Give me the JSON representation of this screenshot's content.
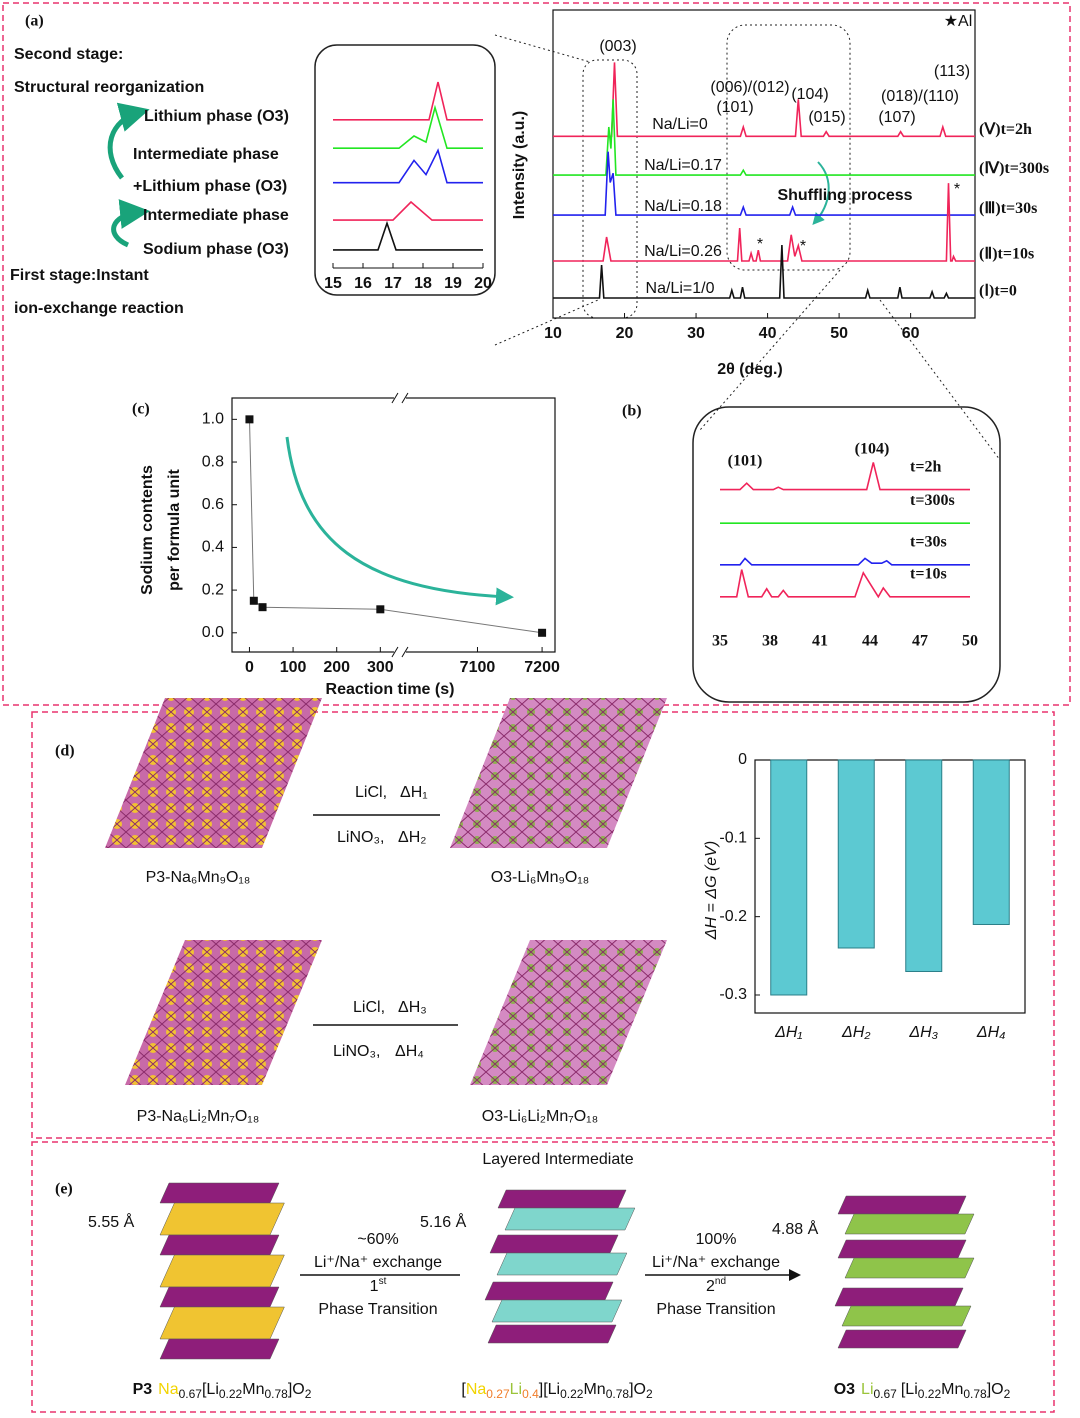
{
  "panels": {
    "a": "(a)",
    "b": "(b)",
    "c": "(c)",
    "d": "(d)",
    "e": "(e)"
  },
  "panel_a": {
    "texts": [
      "Second stage:",
      "Structural reorganization",
      "Lithium phase (O3)",
      "Intermediate phase",
      "+Lithium phase (O3)",
      "Intermediate phase",
      "Sodium phase (O3)",
      "First stage:Instant",
      "ion-exchange reaction"
    ]
  },
  "panel_d": {
    "reagents": [
      "LiCl,",
      "ΔH₁",
      "LiNO₃,",
      "ΔH₂",
      "LiCl,",
      "ΔH₃",
      "LiNO₃,",
      "ΔH₄"
    ],
    "compounds": [
      "P3-Na₆Mn₉O₁₈",
      "O3-Li₆Mn₉O₁₈",
      "P3-Na₆Li₂Mn₇O₁₈",
      "O3-Li₆Li₂Mn₇O₁₈"
    ]
  },
  "panel_e": {
    "title": "Layered Intermediate",
    "spacings": [
      "5.55 Å",
      "5.16 Å",
      "4.88 Å"
    ],
    "steps": [
      {
        "percent": "~60%",
        "exchange": "Li⁺/Na⁺ exchange",
        "order": [
          "1",
          "st"
        ],
        "label": "Phase Transition"
      },
      {
        "percent": "100%",
        "exchange": "Li⁺/Na⁺ exchange",
        "order": [
          "2",
          "nd"
        ],
        "label": "Phase Transition"
      }
    ],
    "formulas": [
      [
        "P3",
        "Na",
        "0.67",
        "[Li",
        "0.22",
        "Mn",
        "0.78",
        "]O",
        "2"
      ],
      [
        "[",
        "Na",
        "0.27",
        "Li",
        "0.4",
        "][Li",
        "0.22",
        "Mn",
        "0.78",
        "]O",
        "2"
      ],
      [
        "O3",
        "Li",
        "0.67",
        "[Li",
        "0.22",
        "Mn",
        "0.78",
        "]O",
        "2"
      ]
    ]
  },
  "chart_data": [
    {
      "type": "line",
      "xlabel": "2θ (deg.)",
      "ylabel": "Intensity (a.u.)",
      "xlim": [
        10,
        69
      ],
      "xticks": [
        10,
        20,
        30,
        40,
        50,
        60
      ],
      "ylim": [
        0,
        100
      ],
      "annotations": [
        "(003)",
        "(006)/(012)",
        "(101)",
        "(104)",
        "(015)",
        "(018)/(110)",
        "(107)",
        "(113)",
        "★Al",
        "Na/Li=0",
        "Na/Li=0.17",
        "Na/Li=0.18",
        "Na/Li=0.26",
        "Na/Li=1/0",
        "Shuffling process",
        "*",
        "*",
        "*"
      ],
      "series": [
        {
          "name": "(Ⅴ)t=2h",
          "color": "#f0245a",
          "x": [
            10,
            18.2,
            18.6,
            19.0,
            36.2,
            36.6,
            37.0,
            43.9,
            44.3,
            44.7,
            47.8,
            48.2,
            48.6,
            58.2,
            58.6,
            59.0,
            64.1,
            64.5,
            64.9,
            69
          ],
          "values": [
            59,
            59,
            83,
            59,
            59,
            62,
            59,
            59,
            71,
            59,
            59,
            60.5,
            59,
            59,
            60.5,
            59,
            59,
            62,
            59,
            59
          ]
        },
        {
          "name": "(Ⅳ)t=300s",
          "color": "#22e622",
          "x": [
            10,
            17.4,
            17.8,
            18.1,
            18.4,
            18.8,
            36.2,
            36.6,
            37,
            69
          ],
          "values": [
            46.4,
            46.4,
            62,
            55,
            71,
            46.4,
            46.4,
            48,
            46.4,
            46.4
          ]
        },
        {
          "name": "(Ⅲ)t=30s",
          "color": "#2222ee",
          "x": [
            10,
            17.3,
            17.7,
            18.0,
            18.4,
            18.8,
            36.2,
            36.6,
            37.0,
            43.1,
            43.5,
            43.9,
            69
          ],
          "values": [
            33.4,
            33.4,
            54,
            44,
            47,
            33.4,
            33.4,
            36,
            33.4,
            33.4,
            36,
            33.4,
            33.4
          ]
        },
        {
          "name": "(Ⅱ)t=10s",
          "color": "#f0245a",
          "x": [
            10,
            17.0,
            17.5,
            18.1,
            35.8,
            36.1,
            36.4,
            37.4,
            37.7,
            38.0,
            38.4,
            38.7,
            39.0,
            42.8,
            43.3,
            43.8,
            44.3,
            44.8,
            65.0,
            65.3,
            65.6,
            65.8,
            66.0,
            66.3,
            69
          ],
          "values": [
            18.5,
            18.5,
            26.3,
            18.5,
            18.5,
            29.2,
            18.5,
            18.5,
            21,
            18.5,
            18.5,
            22,
            18.5,
            18.5,
            27,
            20,
            23.5,
            18.5,
            18.5,
            43.8,
            18.5,
            18.5,
            20,
            18.5,
            18.5
          ]
        },
        {
          "name": "(Ⅰ)t=0",
          "color": "#111111",
          "x": [
            10,
            16.5,
            16.8,
            17.1,
            34.7,
            35,
            35.3,
            36.2,
            36.5,
            36.8,
            41.7,
            42,
            42.3,
            53.7,
            54,
            54.3,
            58.2,
            58.5,
            58.8,
            62.7,
            63,
            63.3,
            64.7,
            65,
            65.3,
            69
          ],
          "values": [
            6.5,
            6.5,
            17.2,
            6.5,
            6.5,
            9,
            6.5,
            6.5,
            10,
            6.5,
            6.5,
            23.7,
            6.5,
            6.5,
            9,
            6.5,
            6.5,
            10,
            6.5,
            6.5,
            8.5,
            6.5,
            6.5,
            8,
            6.5,
            6.5
          ]
        }
      ]
    },
    {
      "type": "line",
      "xlim": [
        15,
        20
      ],
      "xticks": [
        15,
        16,
        17,
        18,
        19,
        20
      ],
      "ylim": [
        0,
        100
      ],
      "series": [
        {
          "color": "#f0245a",
          "x": [
            15,
            18.2,
            18.5,
            18.8,
            20
          ],
          "values": [
            73,
            73,
            91.6,
            73,
            73
          ]
        },
        {
          "color": "#22e622",
          "x": [
            15,
            17.2,
            17.7,
            18.1,
            18.4,
            18.8,
            20
          ],
          "values": [
            59,
            59,
            65,
            62,
            79,
            59,
            59
          ]
        },
        {
          "color": "#2222ee",
          "x": [
            15,
            17.2,
            17.7,
            18.1,
            18.5,
            18.8,
            20
          ],
          "values": [
            42,
            42,
            53,
            46,
            58,
            42,
            42
          ]
        },
        {
          "color": "#f0245a",
          "x": [
            15,
            17.0,
            17.6,
            18.3,
            20
          ],
          "values": [
            23.6,
            23.6,
            32.5,
            23.6,
            23.6
          ]
        },
        {
          "color": "#111111",
          "x": [
            15,
            16.5,
            16.8,
            17.1,
            20
          ],
          "values": [
            8.9,
            8.9,
            22,
            8.9,
            8.9
          ]
        }
      ]
    },
    {
      "type": "line",
      "xlim": [
        35,
        50
      ],
      "xticks": [
        35,
        38,
        41,
        44,
        47,
        50
      ],
      "ylim": [
        0,
        100
      ],
      "annotations": [
        "(101)",
        "(104)"
      ],
      "series": [
        {
          "name": "t=2h",
          "color": "#f0245a",
          "x": [
            35,
            36.2,
            36.6,
            37,
            38.2,
            38.5,
            38.8,
            43.8,
            44.2,
            44.6,
            50
          ],
          "values": [
            69,
            69,
            73,
            69,
            69,
            70.5,
            69,
            69,
            86,
            69,
            69
          ]
        },
        {
          "name": "t=300s",
          "color": "#22e622",
          "x": [
            35,
            50
          ],
          "values": [
            48,
            48
          ]
        },
        {
          "name": "t=30s",
          "color": "#2222ee",
          "x": [
            35,
            36.2,
            36.5,
            36.9,
            43.3,
            43.7,
            44.1,
            44.7,
            45,
            45.3,
            50
          ],
          "values": [
            22,
            22,
            26,
            22,
            22,
            26,
            23,
            23,
            24.5,
            22,
            22
          ]
        },
        {
          "name": "t=10s",
          "color": "#f0245a",
          "x": [
            35,
            36,
            36.3,
            36.7,
            37.5,
            37.8,
            38.1,
            38.5,
            38.8,
            39.1,
            43.1,
            43.6,
            44.2,
            44.5,
            44.8,
            45.2,
            50
          ],
          "values": [
            2,
            2,
            19,
            2,
            2,
            7,
            2,
            2,
            6,
            2,
            2,
            17,
            7,
            2,
            7.5,
            2,
            2
          ]
        }
      ]
    },
    {
      "type": "scatter",
      "xlabel": "Reaction time (s)",
      "ylabel": [
        "Sodium contents",
        "per formula unit"
      ],
      "x": [
        0,
        10,
        30,
        300,
        7200
      ],
      "values": [
        1.0,
        0.15,
        0.12,
        0.11,
        0.0
      ],
      "color": "#111111",
      "xlim": [
        -40,
        7220
      ],
      "xbreak": [
        345,
        6980
      ],
      "xticks": [
        0,
        100,
        200,
        300,
        7100,
        7200
      ],
      "ylim": [
        -0.09,
        1.1
      ],
      "yticks": [
        {
          "value": 0,
          "label": "0.0"
        },
        0.2,
        0.4,
        0.6,
        0.8,
        {
          "value": 1,
          "label": "1.0"
        }
      ]
    },
    {
      "type": "bar",
      "ylabel": "ΔH = ΔG (eV)",
      "categories": [
        "ΔH₁",
        "ΔH₂",
        "ΔH₃",
        "ΔH₄"
      ],
      "values": [
        -0.3,
        -0.24,
        -0.27,
        -0.21
      ],
      "color": "#5cc9d2",
      "ylim": [
        -0.323,
        0
      ],
      "yticks": [
        0,
        -0.1,
        -0.2,
        -0.3
      ]
    }
  ]
}
